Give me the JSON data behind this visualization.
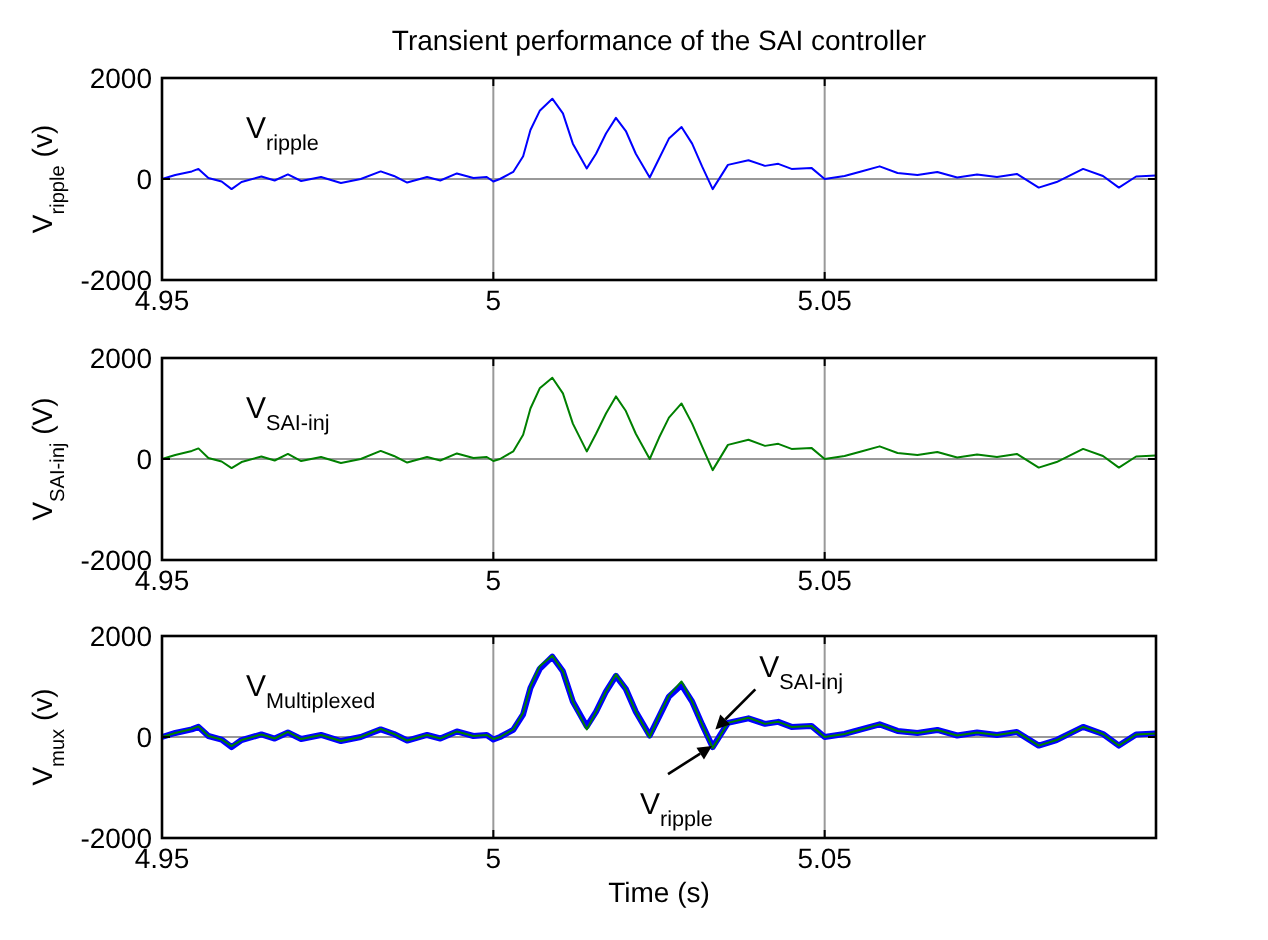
{
  "chart_data": [
    {
      "type": "line",
      "title": "Transient performance of the SAI controller",
      "ylabel": "V$_{ripple}$ (v)",
      "xlim": [
        4.95,
        5.1
      ],
      "xticks": [
        4.95,
        5,
        5.05
      ],
      "ylim": [
        -2000,
        2000
      ],
      "yticks": [
        -2000,
        0,
        2000
      ],
      "grid": true,
      "annotations": [
        "V$_{ripple}$"
      ],
      "x": [
        4.95,
        4.952,
        4.9545,
        4.9555,
        4.957,
        4.959,
        4.9605,
        4.962,
        4.965,
        4.967,
        4.969,
        4.971,
        4.974,
        4.977,
        4.98,
        4.983,
        4.985,
        4.987,
        4.99,
        4.992,
        4.9945,
        4.997,
        4.999,
        5.0,
        5.001,
        5.003,
        5.0045,
        5.0056,
        5.007,
        5.0089,
        5.0105,
        5.012,
        5.0141,
        5.0155,
        5.017,
        5.0185,
        5.02,
        5.0215,
        5.0236,
        5.025,
        5.0265,
        5.0284,
        5.03,
        5.0315,
        5.0331,
        5.0354,
        5.0385,
        5.041,
        5.043,
        5.045,
        5.048,
        5.05,
        5.053,
        5.0555,
        5.0583,
        5.061,
        5.064,
        5.067,
        5.07,
        5.073,
        5.076,
        5.079,
        5.0823,
        5.085,
        5.089,
        5.092,
        5.0944,
        5.097,
        5.1
      ],
      "series": [
        {
          "color": "#0000ff",
          "values": [
            0,
            80,
            150,
            200,
            20,
            -50,
            -200,
            -60,
            50,
            -30,
            90,
            -40,
            40,
            -80,
            0,
            150,
            60,
            -70,
            40,
            -30,
            110,
            20,
            40,
            -50,
            0,
            140,
            450,
            970,
            1350,
            1590,
            1300,
            700,
            210,
            500,
            900,
            1210,
            950,
            500,
            30,
            400,
            800,
            1030,
            700,
            250,
            -200,
            280,
            370,
            260,
            300,
            200,
            220,
            0,
            60,
            150,
            250,
            120,
            80,
            140,
            30,
            90,
            40,
            100,
            -170,
            -60,
            200,
            60,
            -170,
            50,
            70
          ]
        }
      ]
    },
    {
      "type": "line",
      "ylabel": "V$_{SAI-inj}$ (V)",
      "xlim": [
        4.95,
        5.1
      ],
      "xticks": [
        4.95,
        5,
        5.05
      ],
      "ylim": [
        -2000,
        2000
      ],
      "yticks": [
        -2000,
        0,
        2000
      ],
      "grid": true,
      "annotations": [
        "V$_{SAI-inj}$"
      ],
      "x": [
        4.95,
        4.952,
        4.9545,
        4.9555,
        4.957,
        4.959,
        4.9605,
        4.962,
        4.965,
        4.967,
        4.969,
        4.971,
        4.974,
        4.977,
        4.98,
        4.983,
        4.985,
        4.987,
        4.99,
        4.992,
        4.9945,
        4.997,
        4.999,
        5.0,
        5.001,
        5.003,
        5.0045,
        5.0056,
        5.007,
        5.0089,
        5.0105,
        5.012,
        5.0141,
        5.0155,
        5.017,
        5.0185,
        5.02,
        5.0215,
        5.0236,
        5.025,
        5.0265,
        5.0284,
        5.03,
        5.0315,
        5.0331,
        5.0354,
        5.0385,
        5.041,
        5.043,
        5.045,
        5.048,
        5.05,
        5.053,
        5.0555,
        5.0583,
        5.061,
        5.064,
        5.067,
        5.07,
        5.073,
        5.076,
        5.079,
        5.0823,
        5.085,
        5.089,
        5.092,
        5.0944,
        5.097,
        5.1
      ],
      "series": [
        {
          "color": "#008000",
          "values": [
            0,
            80,
            160,
            210,
            20,
            -50,
            -180,
            -60,
            50,
            -30,
            100,
            -40,
            40,
            -80,
            0,
            160,
            60,
            -70,
            40,
            -30,
            110,
            20,
            40,
            -40,
            0,
            150,
            480,
            1000,
            1400,
            1610,
            1300,
            700,
            150,
            500,
            900,
            1240,
            950,
            500,
            0,
            420,
            820,
            1100,
            700,
            250,
            -220,
            280,
            380,
            260,
            300,
            200,
            220,
            0,
            60,
            150,
            250,
            120,
            80,
            140,
            30,
            90,
            40,
            100,
            -170,
            -60,
            200,
            60,
            -170,
            50,
            70
          ]
        }
      ]
    },
    {
      "type": "line",
      "ylabel": "V$_{mux}$ (v)",
      "xlabel": "Time (s)",
      "xlim": [
        4.95,
        5.1
      ],
      "xticks": [
        4.95,
        5,
        5.05
      ],
      "ylim": [
        -2000,
        2000
      ],
      "yticks": [
        -2000,
        0,
        2000
      ],
      "grid": true,
      "annotations": [
        "V$_{Multiplexed}$",
        {
          "text": "V$_{SAI-inj}$",
          "x": 5.0335,
          "y": 150
        },
        {
          "text": "V$_{ripple}$",
          "x": 5.033,
          "y": -180
        }
      ],
      "x": [
        4.95,
        4.952,
        4.9545,
        4.9555,
        4.957,
        4.959,
        4.9605,
        4.962,
        4.965,
        4.967,
        4.969,
        4.971,
        4.974,
        4.977,
        4.98,
        4.983,
        4.985,
        4.987,
        4.99,
        4.992,
        4.9945,
        4.997,
        4.999,
        5.0,
        5.001,
        5.003,
        5.0045,
        5.0056,
        5.007,
        5.0089,
        5.0105,
        5.012,
        5.0141,
        5.0155,
        5.017,
        5.0185,
        5.02,
        5.0215,
        5.0236,
        5.025,
        5.0265,
        5.0284,
        5.03,
        5.0315,
        5.0331,
        5.0354,
        5.0385,
        5.041,
        5.043,
        5.045,
        5.048,
        5.05,
        5.053,
        5.0555,
        5.0583,
        5.061,
        5.064,
        5.067,
        5.07,
        5.073,
        5.076,
        5.079,
        5.0823,
        5.085,
        5.089,
        5.092,
        5.0944,
        5.097,
        5.1
      ],
      "series": [
        {
          "color": "#0000ff",
          "values": [
            0,
            80,
            150,
            200,
            20,
            -50,
            -200,
            -60,
            50,
            -30,
            90,
            -40,
            40,
            -80,
            0,
            150,
            60,
            -70,
            40,
            -30,
            110,
            20,
            40,
            -50,
            0,
            140,
            450,
            970,
            1350,
            1590,
            1300,
            700,
            210,
            500,
            900,
            1210,
            950,
            500,
            30,
            400,
            800,
            1030,
            700,
            250,
            -200,
            280,
            370,
            260,
            300,
            200,
            220,
            0,
            60,
            150,
            250,
            120,
            80,
            140,
            30,
            90,
            40,
            100,
            -170,
            -60,
            200,
            60,
            -170,
            50,
            70
          ]
        },
        {
          "color": "#008000",
          "values": [
            0,
            80,
            160,
            210,
            20,
            -50,
            -180,
            -60,
            50,
            -30,
            100,
            -40,
            40,
            -80,
            0,
            160,
            60,
            -70,
            40,
            -30,
            110,
            20,
            40,
            -40,
            0,
            150,
            480,
            1000,
            1400,
            1610,
            1300,
            700,
            150,
            500,
            900,
            1240,
            950,
            500,
            0,
            420,
            820,
            1100,
            700,
            250,
            -220,
            280,
            380,
            260,
            300,
            200,
            220,
            0,
            60,
            150,
            250,
            120,
            80,
            140,
            30,
            90,
            40,
            100,
            -170,
            -60,
            200,
            60,
            -170,
            50,
            70
          ]
        }
      ]
    }
  ]
}
